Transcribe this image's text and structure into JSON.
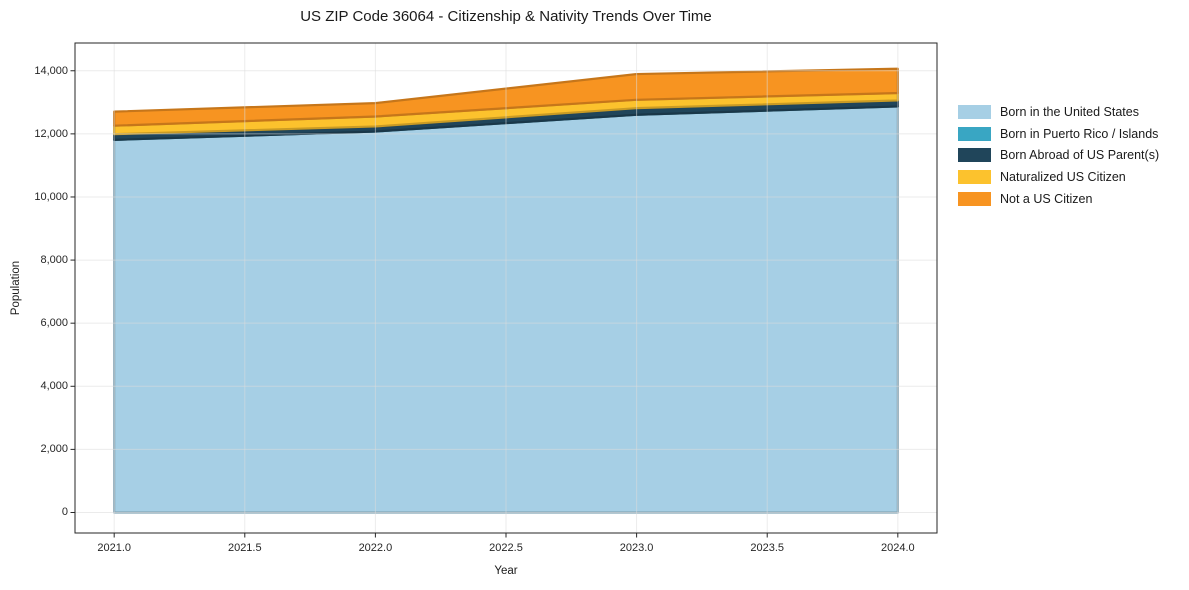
{
  "page": {
    "background": "#ffffff"
  },
  "chart_data": {
    "type": "area",
    "stacked": true,
    "title": "US ZIP Code 36064 - Citizenship & Nativity Trends Over Time",
    "xlabel": "Year",
    "ylabel": "Population",
    "x": [
      2021,
      2022,
      2023,
      2024
    ],
    "series": [
      {
        "name": "Born in the United States",
        "color": "#A6CFE5",
        "values": [
          11810,
          12075,
          12605,
          12870
        ]
      },
      {
        "name": "Born in Puerto Rico / Islands",
        "color": "#39A6C3",
        "values": [
          0,
          0,
          0,
          0
        ]
      },
      {
        "name": "Born Abroad of US Parent(s)",
        "color": "#20455A",
        "values": [
          180,
          160,
          210,
          190
        ]
      },
      {
        "name": "Naturalized US Citizen",
        "color": "#FCC22D",
        "values": [
          270,
          315,
          265,
          235
        ]
      },
      {
        "name": "Not a US Citizen",
        "color": "#F79421",
        "values": [
          445,
          425,
          815,
          770
        ]
      }
    ],
    "xticks": {
      "values": [
        2021.0,
        2021.5,
        2022.0,
        2022.5,
        2023.0,
        2023.5,
        2024.0
      ],
      "labels": [
        "2021.0",
        "2021.5",
        "2022.0",
        "2022.5",
        "2023.0",
        "2023.5",
        "2024.0"
      ]
    },
    "yticks": {
      "values": [
        0,
        2000,
        4000,
        6000,
        8000,
        10000,
        12000,
        14000
      ],
      "labels": [
        "0",
        "2,000",
        "4,000",
        "6,000",
        "8,000",
        "10,000",
        "12,000",
        "14,000"
      ]
    },
    "xlim": [
      2020.85,
      2024.15
    ],
    "ylim": [
      -650,
      14880
    ],
    "grid": true,
    "legend_position": "right-outside",
    "grid_color": "#dcdcdc",
    "spine_color": "#262626"
  },
  "legend": {
    "items": [
      "Born in the United States",
      "Born in Puerto Rico / Islands",
      "Born Abroad of US Parent(s)",
      "Naturalized US Citizen",
      "Not a US Citizen"
    ]
  }
}
